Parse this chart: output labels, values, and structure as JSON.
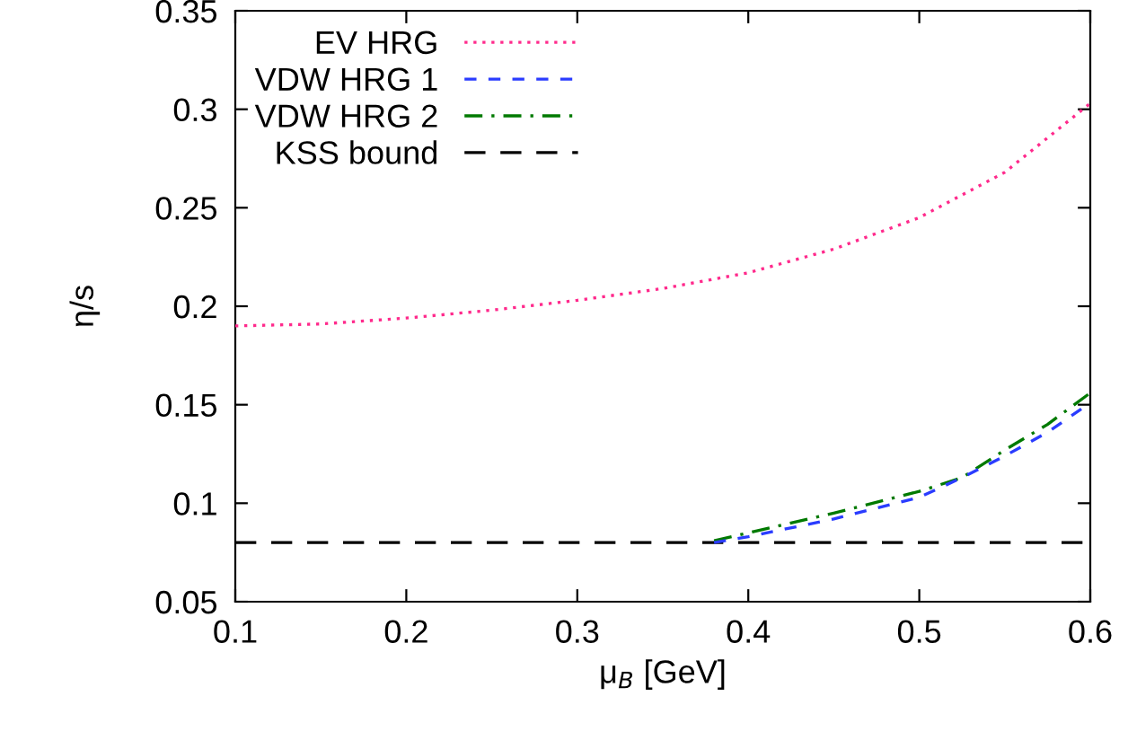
{
  "chart_data": {
    "type": "line",
    "xlabel": "μ$_{B}$ [GeV]",
    "ylabel": "η/s",
    "xlim": [
      0.1,
      0.6
    ],
    "ylim": [
      0.05,
      0.35
    ],
    "xticks": [
      0.1,
      0.2,
      0.3,
      0.4,
      0.5,
      0.6
    ],
    "yticks": [
      0.05,
      0.1,
      0.15,
      0.2,
      0.25,
      0.3,
      0.35
    ],
    "grid": false,
    "legend": "top left",
    "series": [
      {
        "name": "EV HRG",
        "color": "#ff2a8c",
        "line_style": "dotted",
        "x": [
          0.1,
          0.15,
          0.2,
          0.25,
          0.3,
          0.35,
          0.4,
          0.45,
          0.5,
          0.55,
          0.6
        ],
        "values": [
          0.19,
          0.191,
          0.194,
          0.198,
          0.203,
          0.209,
          0.217,
          0.229,
          0.245,
          0.268,
          0.303
        ]
      },
      {
        "name": "VDW HRG 1",
        "color": "#2a3cff",
        "line_style": "dashed",
        "x": [
          0.38,
          0.4,
          0.45,
          0.5,
          0.525,
          0.55,
          0.575,
          0.6
        ],
        "values": [
          0.08,
          0.083,
          0.092,
          0.103,
          0.113,
          0.124,
          0.136,
          0.151
        ]
      },
      {
        "name": "VDW HRG 2",
        "color": "#007a00",
        "line_style": "dashdot",
        "x": [
          0.38,
          0.4,
          0.45,
          0.5,
          0.525,
          0.55,
          0.575,
          0.6
        ],
        "values": [
          0.081,
          0.085,
          0.095,
          0.106,
          0.113,
          0.127,
          0.14,
          0.156
        ]
      },
      {
        "name": "KSS bound",
        "color": "#000000",
        "line_style": "longdash",
        "x": [
          0.1,
          0.6
        ],
        "values": [
          0.08,
          0.08
        ]
      }
    ]
  }
}
